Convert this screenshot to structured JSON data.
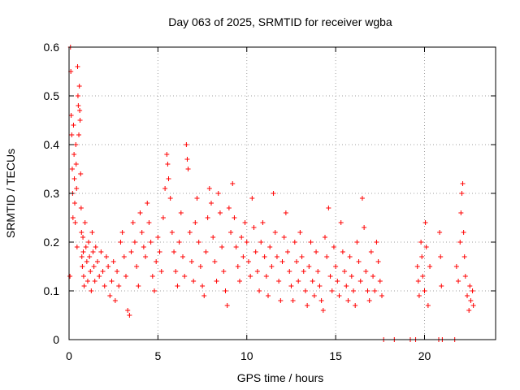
{
  "chart_data": {
    "type": "scatter",
    "title": "Day 063 of 2025, SRMTID for receiver wgba",
    "xlabel": "GPS time / hours",
    "ylabel": "SRMTID / TECUs",
    "xlim": [
      0,
      24
    ],
    "ylim": [
      0,
      0.6
    ],
    "xticks": [
      0,
      5,
      10,
      15,
      20
    ],
    "xtick_labels": [
      "0",
      "5",
      "10",
      "15",
      "20"
    ],
    "yticks": [
      0,
      0.1,
      0.2,
      0.3,
      0.4,
      0.5,
      0.6
    ],
    "ytick_labels": [
      "0",
      "0.1",
      "0.2",
      "0.3",
      "0.4",
      "0.5",
      "0.6"
    ],
    "grid": true,
    "marker": "+",
    "series": [
      {
        "name": "SRMTID",
        "color": "#ff0000",
        "points": [
          [
            0.05,
            0.13
          ],
          [
            0.08,
            0.6
          ],
          [
            0.1,
            0.55
          ],
          [
            0.12,
            0.46
          ],
          [
            0.15,
            0.42
          ],
          [
            0.18,
            0.35
          ],
          [
            0.2,
            0.3
          ],
          [
            0.22,
            0.25
          ],
          [
            0.25,
            0.44
          ],
          [
            0.28,
            0.38
          ],
          [
            0.3,
            0.33
          ],
          [
            0.32,
            0.28
          ],
          [
            0.35,
            0.24
          ],
          [
            0.38,
            0.4
          ],
          [
            0.4,
            0.36
          ],
          [
            0.42,
            0.31
          ],
          [
            0.45,
            0.19
          ],
          [
            0.48,
            0.56
          ],
          [
            0.5,
            0.5
          ],
          [
            0.52,
            0.48
          ],
          [
            0.55,
            0.42
          ],
          [
            0.58,
            0.52
          ],
          [
            0.6,
            0.47
          ],
          [
            0.62,
            0.45
          ],
          [
            0.65,
            0.34
          ],
          [
            0.68,
            0.27
          ],
          [
            0.7,
            0.22
          ],
          [
            0.72,
            0.17
          ],
          [
            0.75,
            0.15
          ],
          [
            0.78,
            0.21
          ],
          [
            0.8,
            0.18
          ],
          [
            0.82,
            0.13
          ],
          [
            0.85,
            0.11
          ],
          [
            0.9,
            0.24
          ],
          [
            0.95,
            0.19
          ],
          [
            1.0,
            0.16
          ],
          [
            1.05,
            0.12
          ],
          [
            1.1,
            0.2
          ],
          [
            1.15,
            0.17
          ],
          [
            1.2,
            0.14
          ],
          [
            1.25,
            0.1
          ],
          [
            1.3,
            0.22
          ],
          [
            1.35,
            0.18
          ],
          [
            1.4,
            0.15
          ],
          [
            1.45,
            0.12
          ],
          [
            1.5,
            0.19
          ],
          [
            1.6,
            0.16
          ],
          [
            1.7,
            0.13
          ],
          [
            1.8,
            0.18
          ],
          [
            1.9,
            0.14
          ],
          [
            2.0,
            0.11
          ],
          [
            2.1,
            0.17
          ],
          [
            2.2,
            0.15
          ],
          [
            2.3,
            0.09
          ],
          [
            2.4,
            0.12
          ],
          [
            2.5,
            0.16
          ],
          [
            2.6,
            0.08
          ],
          [
            2.7,
            0.14
          ],
          [
            2.8,
            0.11
          ],
          [
            2.9,
            0.2
          ],
          [
            3.0,
            0.22
          ],
          [
            3.1,
            0.17
          ],
          [
            3.2,
            0.13
          ],
          [
            3.3,
            0.06
          ],
          [
            3.4,
            0.05
          ],
          [
            3.5,
            0.18
          ],
          [
            3.6,
            0.24
          ],
          [
            3.7,
            0.2
          ],
          [
            3.8,
            0.15
          ],
          [
            3.9,
            0.11
          ],
          [
            4.0,
            0.26
          ],
          [
            4.1,
            0.22
          ],
          [
            4.2,
            0.19
          ],
          [
            4.3,
            0.17
          ],
          [
            4.4,
            0.28
          ],
          [
            4.5,
            0.24
          ],
          [
            4.6,
            0.2
          ],
          [
            4.7,
            0.13
          ],
          [
            4.8,
            0.1
          ],
          [
            4.9,
            0.16
          ],
          [
            5.0,
            0.21
          ],
          [
            5.1,
            0.18
          ],
          [
            5.2,
            0.14
          ],
          [
            5.3,
            0.25
          ],
          [
            5.4,
            0.31
          ],
          [
            5.5,
            0.38
          ],
          [
            5.55,
            0.36
          ],
          [
            5.6,
            0.33
          ],
          [
            5.7,
            0.29
          ],
          [
            5.8,
            0.22
          ],
          [
            5.9,
            0.18
          ],
          [
            6.0,
            0.14
          ],
          [
            6.1,
            0.11
          ],
          [
            6.2,
            0.2
          ],
          [
            6.3,
            0.26
          ],
          [
            6.4,
            0.17
          ],
          [
            6.5,
            0.13
          ],
          [
            6.6,
            0.4
          ],
          [
            6.65,
            0.37
          ],
          [
            6.7,
            0.35
          ],
          [
            6.8,
            0.22
          ],
          [
            6.9,
            0.16
          ],
          [
            7.0,
            0.12
          ],
          [
            7.1,
            0.24
          ],
          [
            7.2,
            0.29
          ],
          [
            7.3,
            0.2
          ],
          [
            7.4,
            0.15
          ],
          [
            7.5,
            0.11
          ],
          [
            7.6,
            0.09
          ],
          [
            7.7,
            0.18
          ],
          [
            7.8,
            0.25
          ],
          [
            7.9,
            0.31
          ],
          [
            8.0,
            0.28
          ],
          [
            8.1,
            0.21
          ],
          [
            8.2,
            0.16
          ],
          [
            8.3,
            0.12
          ],
          [
            8.4,
            0.3
          ],
          [
            8.5,
            0.26
          ],
          [
            8.6,
            0.19
          ],
          [
            8.7,
            0.14
          ],
          [
            8.8,
            0.1
          ],
          [
            8.9,
            0.07
          ],
          [
            9.0,
            0.27
          ],
          [
            9.1,
            0.22
          ],
          [
            9.2,
            0.32
          ],
          [
            9.3,
            0.25
          ],
          [
            9.4,
            0.19
          ],
          [
            9.5,
            0.15
          ],
          [
            9.6,
            0.12
          ],
          [
            9.7,
            0.21
          ],
          [
            9.8,
            0.17
          ],
          [
            9.9,
            0.24
          ],
          [
            10.0,
            0.2
          ],
          [
            10.1,
            0.16
          ],
          [
            10.2,
            0.13
          ],
          [
            10.3,
            0.29
          ],
          [
            10.4,
            0.23
          ],
          [
            10.5,
            0.18
          ],
          [
            10.6,
            0.14
          ],
          [
            10.7,
            0.1
          ],
          [
            10.8,
            0.2
          ],
          [
            10.9,
            0.24
          ],
          [
            11.0,
            0.17
          ],
          [
            11.1,
            0.13
          ],
          [
            11.2,
            0.09
          ],
          [
            11.3,
            0.19
          ],
          [
            11.4,
            0.15
          ],
          [
            11.5,
            0.3
          ],
          [
            11.6,
            0.22
          ],
          [
            11.7,
            0.17
          ],
          [
            11.8,
            0.12
          ],
          [
            11.9,
            0.08
          ],
          [
            12.0,
            0.16
          ],
          [
            12.1,
            0.21
          ],
          [
            12.2,
            0.26
          ],
          [
            12.3,
            0.18
          ],
          [
            12.4,
            0.14
          ],
          [
            12.5,
            0.11
          ],
          [
            12.6,
            0.08
          ],
          [
            12.7,
            0.2
          ],
          [
            12.8,
            0.16
          ],
          [
            12.9,
            0.12
          ],
          [
            13.0,
            0.22
          ],
          [
            13.1,
            0.17
          ],
          [
            13.2,
            0.14
          ],
          [
            13.3,
            0.1
          ],
          [
            13.4,
            0.07
          ],
          [
            13.5,
            0.15
          ],
          [
            13.6,
            0.2
          ],
          [
            13.7,
            0.12
          ],
          [
            13.8,
            0.09
          ],
          [
            13.9,
            0.18
          ],
          [
            14.0,
            0.14
          ],
          [
            14.1,
            0.11
          ],
          [
            14.2,
            0.08
          ],
          [
            14.3,
            0.06
          ],
          [
            14.4,
            0.21
          ],
          [
            14.5,
            0.17
          ],
          [
            14.6,
            0.27
          ],
          [
            14.7,
            0.13
          ],
          [
            14.8,
            0.1
          ],
          [
            14.9,
            0.19
          ],
          [
            15.0,
            0.15
          ],
          [
            15.1,
            0.12
          ],
          [
            15.2,
            0.09
          ],
          [
            15.3,
            0.24
          ],
          [
            15.4,
            0.18
          ],
          [
            15.5,
            0.14
          ],
          [
            15.6,
            0.11
          ],
          [
            15.7,
            0.08
          ],
          [
            15.8,
            0.17
          ],
          [
            15.9,
            0.13
          ],
          [
            16.0,
            0.1
          ],
          [
            16.1,
            0.07
          ],
          [
            16.2,
            0.2
          ],
          [
            16.3,
            0.16
          ],
          [
            16.4,
            0.12
          ],
          [
            16.5,
            0.29
          ],
          [
            16.6,
            0.23
          ],
          [
            16.7,
            0.14
          ],
          [
            16.8,
            0.1
          ],
          [
            16.9,
            0.08
          ],
          [
            17.0,
            0.18
          ],
          [
            17.1,
            0.13
          ],
          [
            17.2,
            0.1
          ],
          [
            17.3,
            0.2
          ],
          [
            17.4,
            0.16
          ],
          [
            17.5,
            0.12
          ],
          [
            17.6,
            0.09
          ],
          [
            17.7,
            0.0
          ],
          [
            18.3,
            0.0
          ],
          [
            19.2,
            0.0
          ],
          [
            19.5,
            0.0
          ],
          [
            19.6,
            0.15
          ],
          [
            19.65,
            0.12
          ],
          [
            19.7,
            0.09
          ],
          [
            19.8,
            0.2
          ],
          [
            19.85,
            0.17
          ],
          [
            19.9,
            0.13
          ],
          [
            20.0,
            0.1
          ],
          [
            20.05,
            0.24
          ],
          [
            20.1,
            0.19
          ],
          [
            20.2,
            0.07
          ],
          [
            20.3,
            0.15
          ],
          [
            20.8,
            0.0
          ],
          [
            20.85,
            0.22
          ],
          [
            20.9,
            0.17
          ],
          [
            20.95,
            0.11
          ],
          [
            21.0,
            0.0
          ],
          [
            21.7,
            0.0
          ],
          [
            21.8,
            0.15
          ],
          [
            21.9,
            0.12
          ],
          [
            22.0,
            0.2
          ],
          [
            22.05,
            0.26
          ],
          [
            22.1,
            0.3
          ],
          [
            22.15,
            0.32
          ],
          [
            22.2,
            0.22
          ],
          [
            22.25,
            0.17
          ],
          [
            22.3,
            0.13
          ],
          [
            22.4,
            0.09
          ],
          [
            22.5,
            0.06
          ],
          [
            22.55,
            0.11
          ],
          [
            22.6,
            0.08
          ],
          [
            22.7,
            0.1
          ],
          [
            22.75,
            0.07
          ]
        ]
      }
    ]
  }
}
